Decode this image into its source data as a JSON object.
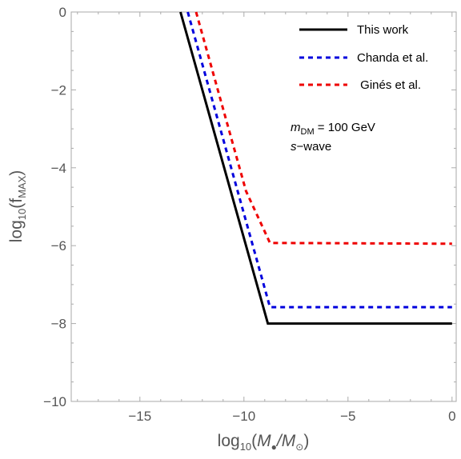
{
  "chart_data": {
    "type": "line",
    "xlabel": {
      "base": "log",
      "sub": "10",
      "open": "(",
      "mass": "M",
      "bullet": "●",
      "slash": "/M",
      "sun": "⊙",
      "close": ")"
    },
    "ylabel": {
      "base": "log",
      "sub": "10",
      "open": "(f",
      "sub2": "MAX",
      "close": ")"
    },
    "xlim": [
      -18.3,
      0.2
    ],
    "ylim": [
      -10,
      0
    ],
    "x_ticks": [
      -15,
      -10,
      -5,
      0
    ],
    "x_tick_labels": [
      "−15",
      "−10",
      "−5",
      "0"
    ],
    "y_ticks": [
      0,
      -2,
      -4,
      -6,
      -8,
      -10
    ],
    "y_tick_labels": [
      "0",
      "−2",
      "−4",
      "−6",
      "−8",
      "−10"
    ],
    "grid": false,
    "legend_position": "top-right",
    "series": [
      {
        "name": "This work",
        "color": "#000000",
        "style": "solid",
        "points": [
          [
            -13.05,
            0
          ],
          [
            -8.85,
            -8.0
          ],
          [
            0,
            -8.0
          ]
        ]
      },
      {
        "name": "Chanda et al.",
        "color": "#0000dd",
        "style": "dashed",
        "points": [
          [
            -12.7,
            0
          ],
          [
            -8.75,
            -7.58
          ],
          [
            0,
            -7.58
          ]
        ]
      },
      {
        "name": " Ginés et al.",
        "color": "#ee0000",
        "style": "dashed",
        "points": [
          [
            -12.3,
            0
          ],
          [
            -9.9,
            -4.6
          ],
          [
            -8.75,
            -5.93
          ],
          [
            0,
            -5.95
          ]
        ]
      }
    ],
    "annotations": {
      "mass": {
        "symbol": "m",
        "sub": "DM",
        "eq": " = ",
        "value": "100 GeV"
      },
      "wave": {
        "symbol": "s",
        "rest": "−wave"
      }
    }
  }
}
